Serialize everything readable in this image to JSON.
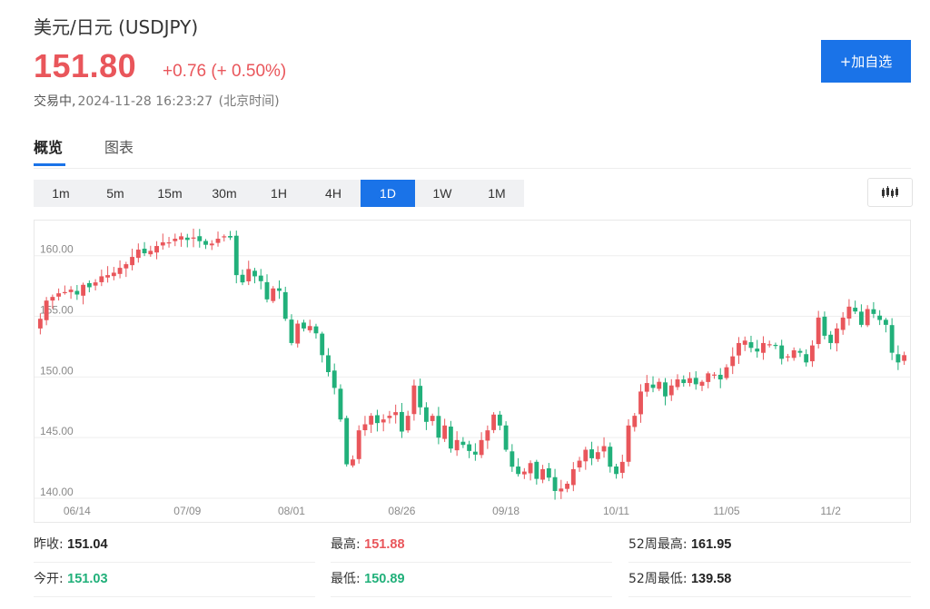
{
  "header": {
    "title": "美元/日元 (USDJPY)",
    "price": "151.80",
    "change": "+0.76 (+ 0.50%)",
    "status_label": "交易中,",
    "timestamp": "2024-11-28 16:23:27",
    "timezone": "(北京时间)",
    "add_button": "+加自选",
    "accent_color": "#1a73e8",
    "up_color": "#e9565b",
    "down_color": "#21b07a"
  },
  "tabs": [
    {
      "label": "概览",
      "active": true
    },
    {
      "label": "图表",
      "active": false
    }
  ],
  "periods": [
    {
      "label": "1m"
    },
    {
      "label": "5m"
    },
    {
      "label": "15m"
    },
    {
      "label": "30m"
    },
    {
      "label": "1H"
    },
    {
      "label": "4H"
    },
    {
      "label": "1D",
      "active": true
    },
    {
      "label": "1W"
    },
    {
      "label": "1M"
    }
  ],
  "chart_type_icon": "candlestick-icon",
  "chart_data": {
    "type": "candlestick",
    "ylim": [
      139.7,
      162.3
    ],
    "yticks": [
      "160.00",
      "155.00",
      "150.00",
      "145.00",
      "140.00"
    ],
    "ytick_values": [
      160,
      155,
      150,
      145,
      140
    ],
    "xticks": [
      "06/14",
      "07/09",
      "08/01",
      "08/26",
      "09/18",
      "10/11",
      "11/05",
      "11/2"
    ],
    "xtick_index": [
      6,
      24,
      41,
      59,
      76,
      94,
      112,
      129
    ],
    "grid": true,
    "closes": [
      154.8,
      156.3,
      156.6,
      156.9,
      157.0,
      157.2,
      156.8,
      157.6,
      157.4,
      157.8,
      158.3,
      158.4,
      158.6,
      159.0,
      159.3,
      159.9,
      160.5,
      160.2,
      160.4,
      160.8,
      161.1,
      161.1,
      161.4,
      161.6,
      161.3,
      161.5,
      161.2,
      160.9,
      161.0,
      161.4,
      161.6,
      161.5,
      158.4,
      157.8,
      158.9,
      158.3,
      157.9,
      156.4,
      157.3,
      157.1,
      154.8,
      152.8,
      154.4,
      154.0,
      154.2,
      153.6,
      151.8,
      150.4,
      149.1,
      146.5,
      142.8,
      143.2,
      145.6,
      146.1,
      146.8,
      146.2,
      146.5,
      146.8,
      147.1,
      145.5,
      146.8,
      149.3,
      147.5,
      146.3,
      146.8,
      145.0,
      146.0,
      144.1,
      144.8,
      144.4,
      143.9,
      143.6,
      144.8,
      145.6,
      146.9,
      146.0,
      144.0,
      142.6,
      142.0,
      142.2,
      142.9,
      141.6,
      142.4,
      141.7,
      140.6,
      140.8,
      141.2,
      142.4,
      143.1,
      144.0,
      143.3,
      143.8,
      144.3,
      142.6,
      142.0,
      143.0,
      146.0,
      146.8,
      148.8,
      149.5,
      149.1,
      149.6,
      148.4,
      149.3,
      149.8,
      149.5,
      149.9,
      149.4,
      149.6,
      150.3,
      150.2,
      149.8,
      150.8,
      151.7,
      152.8,
      153.0,
      152.4,
      152.1,
      152.8,
      152.7,
      152.6,
      151.5,
      151.7,
      152.2,
      152.0,
      151.2,
      152.6,
      154.9,
      153.4,
      152.8,
      154.0,
      154.9,
      155.8,
      155.4,
      154.3,
      155.6,
      155.2,
      154.7,
      154.3,
      152.0,
      151.2,
      151.8
    ]
  },
  "stats": {
    "prev_close_label": "昨收:",
    "prev_close": "151.04",
    "open_label": "今开:",
    "open": "151.03",
    "high_label": "最高:",
    "high": "151.88",
    "low_label": "最低:",
    "low": "150.89",
    "high52_label": "52周最高:",
    "high52": "161.95",
    "low52_label": "52周最低:",
    "low52": "139.58"
  }
}
